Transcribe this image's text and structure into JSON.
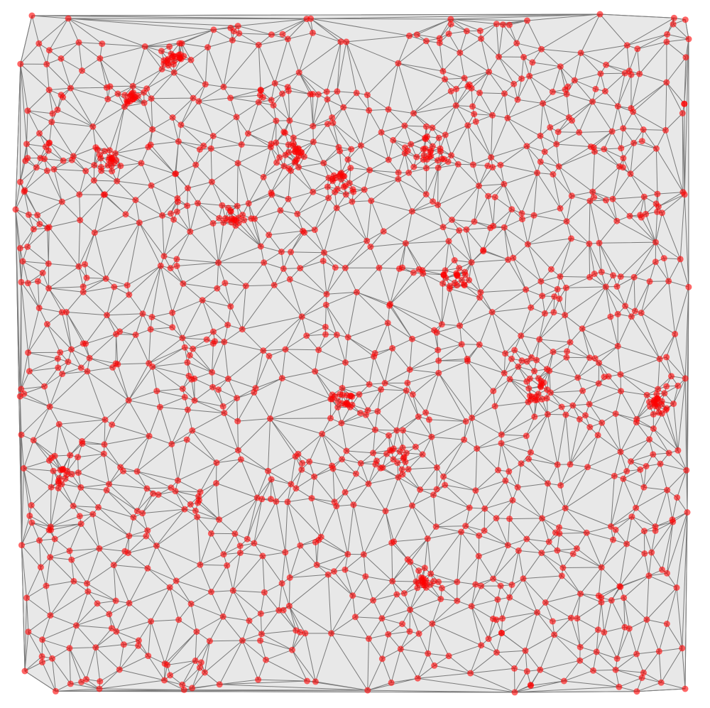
{
  "diagram": {
    "type": "delaunay-triangulation",
    "seed": 8675309,
    "point_count": 1300,
    "cluster_centers": [
      [
        0.545,
        0.655
      ],
      [
        0.645,
        0.387
      ],
      [
        0.215,
        0.063
      ],
      [
        0.4,
        0.205
      ],
      [
        0.61,
        0.205
      ],
      [
        0.05,
        0.68
      ],
      [
        0.6,
        0.835
      ],
      [
        0.76,
        0.555
      ],
      [
        0.945,
        0.575
      ],
      [
        0.31,
        0.3
      ],
      [
        0.12,
        0.215
      ],
      [
        0.16,
        0.12
      ],
      [
        0.465,
        0.245
      ],
      [
        0.485,
        0.575
      ]
    ],
    "style": {
      "region_fill": "#e8e8e8",
      "edge_color": "#7a7a7a",
      "point_color": "#ff0000",
      "point_opacity": 0.6
    }
  }
}
